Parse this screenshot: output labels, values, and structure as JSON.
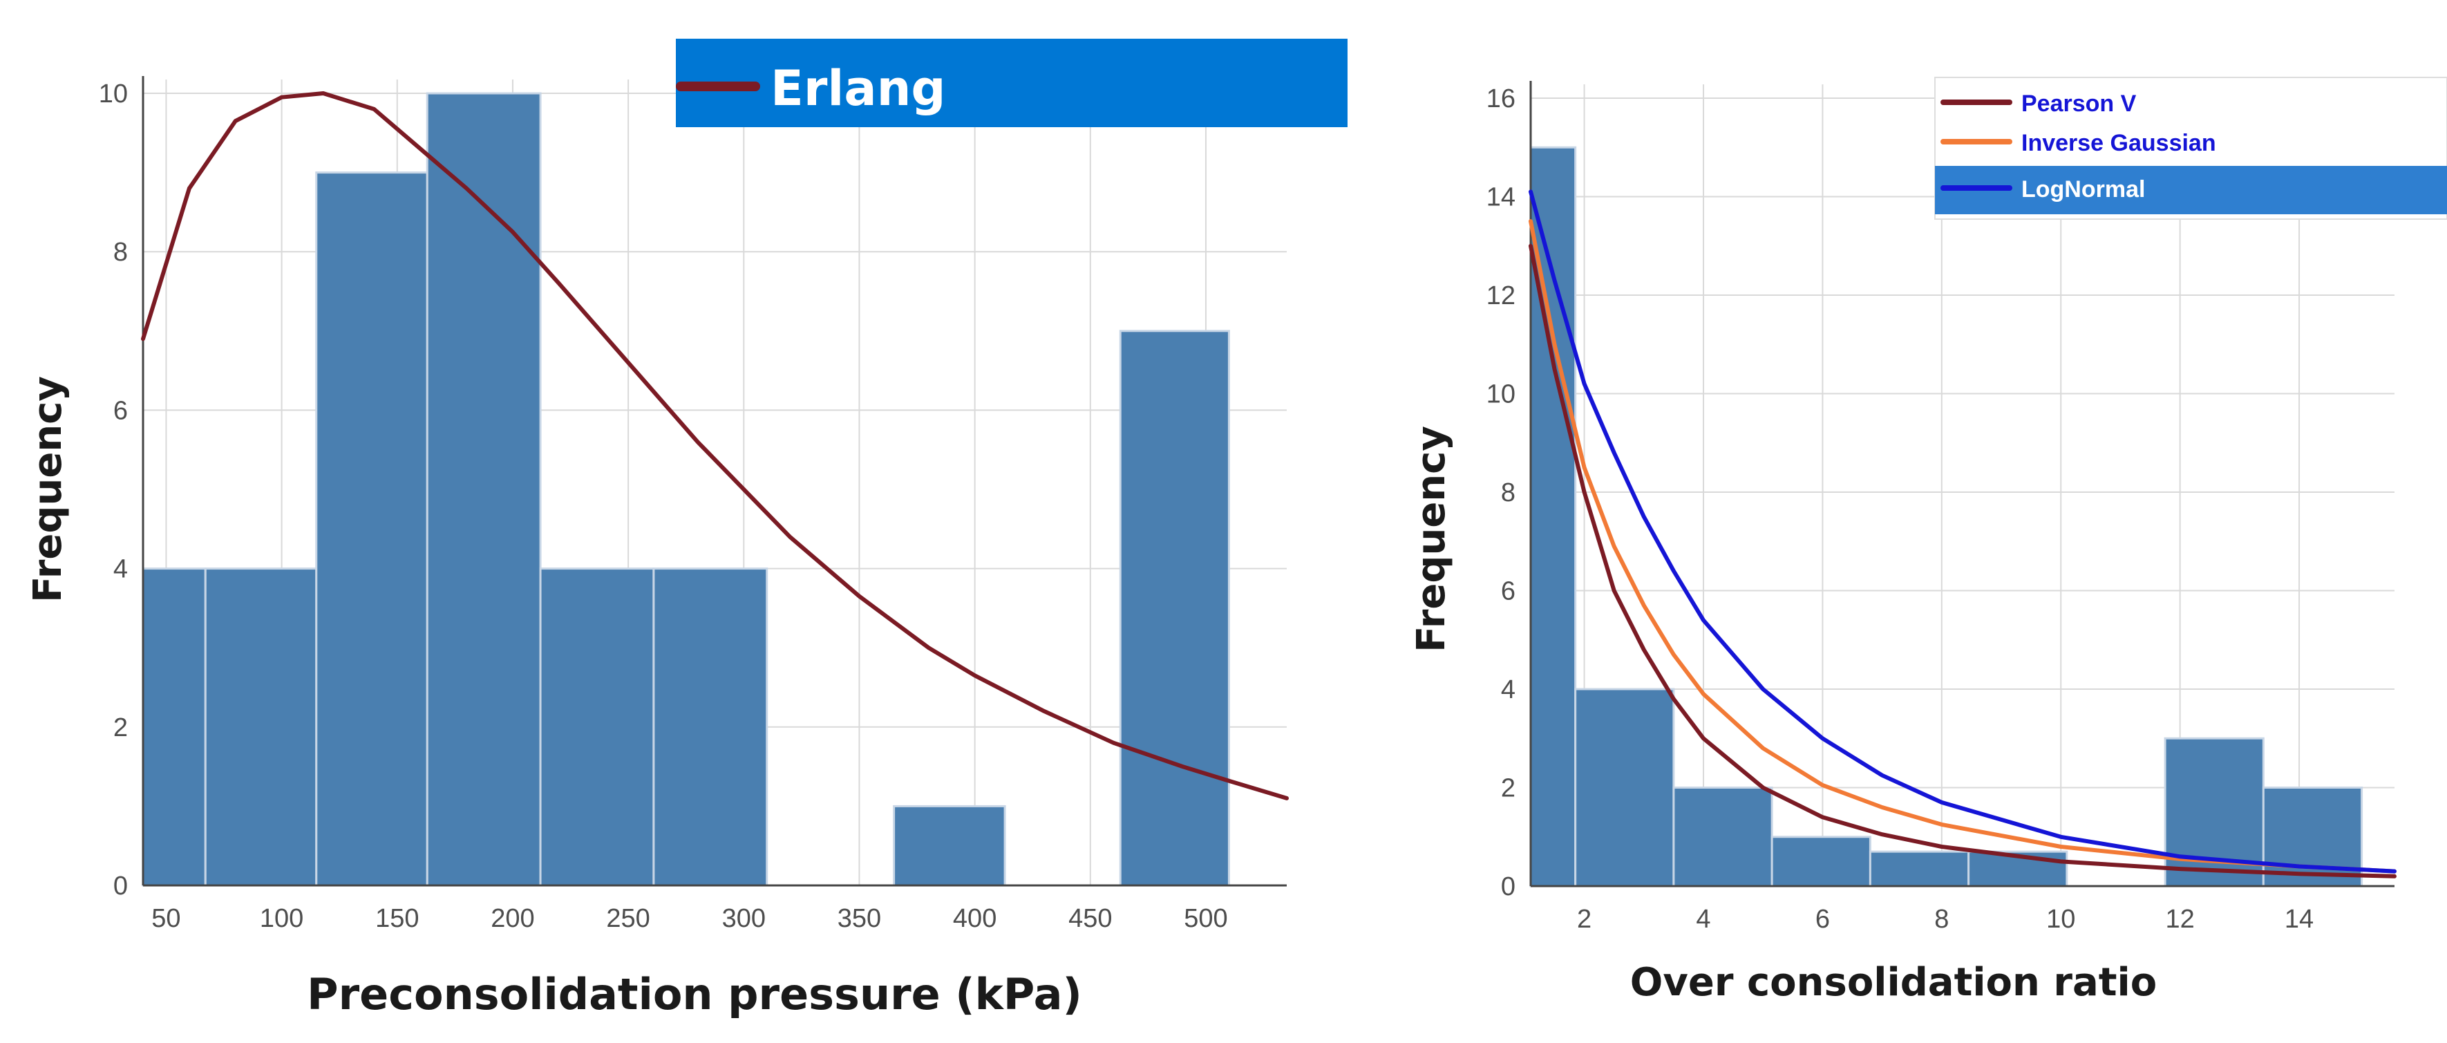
{
  "chart_data": [
    {
      "type": "bar",
      "title": "",
      "xlabel": "Preconsolidation pressure (kPa)",
      "ylabel": "Frequency",
      "xlim": [
        40,
        535
      ],
      "ylim": [
        0,
        10
      ],
      "xticks": [
        50,
        100,
        150,
        200,
        250,
        300,
        350,
        400,
        450,
        500
      ],
      "yticks": [
        0,
        2,
        4,
        6,
        8,
        10
      ],
      "bar_color": "#4a7fb0",
      "bins": [
        {
          "x0": 40,
          "x1": 67,
          "value": 4
        },
        {
          "x0": 67,
          "x1": 115,
          "value": 4
        },
        {
          "x0": 115,
          "x1": 163,
          "value": 9
        },
        {
          "x0": 163,
          "x1": 212,
          "value": 10
        },
        {
          "x0": 212,
          "x1": 261,
          "value": 4
        },
        {
          "x0": 261,
          "x1": 310,
          "value": 4
        },
        {
          "x0": 365,
          "x1": 413,
          "value": 1
        },
        {
          "x0": 463,
          "x1": 510,
          "value": 7
        }
      ],
      "series": [
        {
          "name": "Erlang",
          "color": "#7b1b24",
          "x": [
            40,
            60,
            80,
            100,
            118,
            140,
            160,
            180,
            200,
            220,
            250,
            280,
            300,
            320,
            350,
            380,
            400,
            430,
            460,
            490,
            510,
            535
          ],
          "y": [
            6.9,
            8.8,
            9.65,
            9.95,
            10.0,
            9.8,
            9.3,
            8.8,
            8.25,
            7.6,
            6.6,
            5.6,
            5.0,
            4.4,
            3.65,
            3.0,
            2.65,
            2.2,
            1.8,
            1.5,
            1.32,
            1.1
          ]
        }
      ],
      "legend": {
        "position": "top-right",
        "entries": [
          "Erlang"
        ],
        "bg": "#0077d4"
      }
    },
    {
      "type": "bar",
      "title": "",
      "xlabel": "Over consolidation ratio",
      "ylabel": "Frequency",
      "xlim": [
        1.1,
        15.6
      ],
      "ylim": [
        0,
        16
      ],
      "xticks": [
        2,
        4,
        6,
        8,
        10,
        12,
        14
      ],
      "yticks": [
        0,
        2,
        4,
        6,
        8,
        10,
        12,
        14,
        16
      ],
      "bar_color": "#4a7fb0",
      "bins": [
        {
          "x0": 1.1,
          "x1": 1.85,
          "value": 15
        },
        {
          "x0": 1.85,
          "x1": 3.5,
          "value": 4
        },
        {
          "x0": 3.5,
          "x1": 5.15,
          "value": 2
        },
        {
          "x0": 5.15,
          "x1": 6.8,
          "value": 1
        },
        {
          "x0": 6.8,
          "x1": 8.45,
          "value": 0.7
        },
        {
          "x0": 8.45,
          "x1": 10.1,
          "value": 0.7
        },
        {
          "x0": 11.75,
          "x1": 13.4,
          "value": 3
        },
        {
          "x0": 13.4,
          "x1": 15.05,
          "value": 2
        }
      ],
      "series": [
        {
          "name": "Pearson V",
          "color": "#7b1b24",
          "x": [
            1.1,
            1.5,
            2.0,
            2.5,
            3.0,
            3.5,
            4.0,
            5.0,
            6.0,
            7.0,
            8.0,
            10.0,
            12.0,
            14.0,
            15.6
          ],
          "y": [
            13.0,
            10.5,
            8.0,
            6.0,
            4.8,
            3.8,
            3.0,
            2.0,
            1.4,
            1.05,
            0.8,
            0.5,
            0.35,
            0.25,
            0.2
          ]
        },
        {
          "name": "Inverse Gaussian",
          "color": "#f27a36",
          "x": [
            1.1,
            1.5,
            2.0,
            2.5,
            3.0,
            3.5,
            4.0,
            5.0,
            6.0,
            7.0,
            8.0,
            10.0,
            12.0,
            14.0,
            15.6
          ],
          "y": [
            13.5,
            11.0,
            8.5,
            6.9,
            5.7,
            4.7,
            3.9,
            2.8,
            2.05,
            1.6,
            1.25,
            0.8,
            0.55,
            0.4,
            0.3
          ]
        },
        {
          "name": "LogNormal",
          "color": "#1515d6",
          "x": [
            1.1,
            1.5,
            2.0,
            2.5,
            3.0,
            3.5,
            4.0,
            5.0,
            6.0,
            7.0,
            8.0,
            10.0,
            12.0,
            14.0,
            15.6
          ],
          "y": [
            14.1,
            12.3,
            10.2,
            8.8,
            7.5,
            6.4,
            5.4,
            4.0,
            3.0,
            2.25,
            1.7,
            1.0,
            0.6,
            0.4,
            0.3
          ]
        }
      ],
      "legend": {
        "position": "top-right",
        "entries": [
          "Pearson V",
          "Inverse Gaussian",
          "LogNormal"
        ],
        "highlight_bg": "#2f7fd0"
      }
    }
  ]
}
